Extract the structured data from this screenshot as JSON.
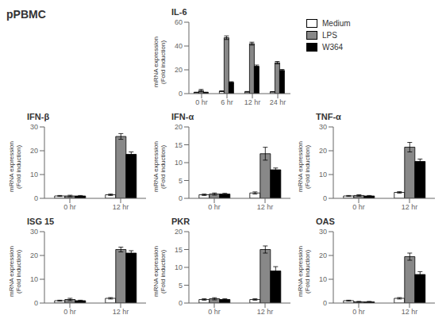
{
  "title": "pPBMC",
  "chart_data": [
    {
      "type": "bar",
      "title": "IL-6",
      "ylabel": "mRNA expression\n(Fold induction)",
      "categories": [
        "0 hr",
        "6 hr",
        "12 hr",
        "24 hr"
      ],
      "series": [
        {
          "name": "Medium",
          "color": "white",
          "values": [
            1.0,
            2.0,
            1.5,
            1.5
          ],
          "errors": [
            0.2,
            0.3,
            0.3,
            0.2
          ]
        },
        {
          "name": "LPS",
          "color": "#888888",
          "values": [
            2.5,
            47.0,
            42.0,
            26.0
          ],
          "errors": [
            1.0,
            1.5,
            1.2,
            1.0
          ]
        },
        {
          "name": "W364",
          "color": "black",
          "values": [
            1.0,
            9.5,
            23.0,
            19.5
          ],
          "errors": [
            0.2,
            0.5,
            1.0,
            0.8
          ]
        }
      ],
      "ylim": [
        0,
        60
      ],
      "yticks": [
        0,
        20,
        40,
        60
      ],
      "grid": false,
      "legend": "right"
    },
    {
      "type": "bar",
      "title": "IFN-β",
      "ylabel": "mRNA expression\n(Fold induction)",
      "categories": [
        "0 hr",
        "12 hr"
      ],
      "series": [
        {
          "name": "Medium",
          "color": "white",
          "values": [
            1.0,
            1.5
          ],
          "errors": [
            0.2,
            0.3
          ]
        },
        {
          "name": "LPS",
          "color": "#888888",
          "values": [
            1.0,
            26.0
          ],
          "errors": [
            0.3,
            1.2
          ]
        },
        {
          "name": "W364",
          "color": "black",
          "values": [
            1.0,
            18.5
          ],
          "errors": [
            0.2,
            1.0
          ]
        }
      ],
      "ylim": [
        0,
        30
      ],
      "yticks": [
        0,
        10,
        20,
        30
      ],
      "grid": false
    },
    {
      "type": "bar",
      "title": "IFN-α",
      "ylabel": "mRNA expression\n(Fold induction)",
      "categories": [
        "0 hr",
        "12 hr"
      ],
      "series": [
        {
          "name": "Medium",
          "color": "white",
          "values": [
            1.0,
            1.5
          ],
          "errors": [
            0.2,
            0.3
          ]
        },
        {
          "name": "LPS",
          "color": "#888888",
          "values": [
            1.2,
            12.5
          ],
          "errors": [
            0.3,
            1.8
          ]
        },
        {
          "name": "W364",
          "color": "black",
          "values": [
            1.2,
            8.0
          ],
          "errors": [
            0.2,
            0.5
          ]
        }
      ],
      "ylim": [
        0,
        20
      ],
      "yticks": [
        0,
        5,
        10,
        15,
        20
      ],
      "grid": false
    },
    {
      "type": "bar",
      "title": "TNF-α",
      "ylabel": "mRNA expression\n(Fold induction)",
      "categories": [
        "0 hr",
        "12 hr"
      ],
      "series": [
        {
          "name": "Medium",
          "color": "white",
          "values": [
            1.0,
            2.5
          ],
          "errors": [
            0.2,
            0.3
          ]
        },
        {
          "name": "LPS",
          "color": "#888888",
          "values": [
            1.2,
            21.5
          ],
          "errors": [
            0.3,
            2.0
          ]
        },
        {
          "name": "W364",
          "color": "black",
          "values": [
            1.0,
            15.5
          ],
          "errors": [
            0.2,
            1.0
          ]
        }
      ],
      "ylim": [
        0,
        30
      ],
      "yticks": [
        0,
        10,
        20,
        30
      ],
      "grid": false
    },
    {
      "type": "bar",
      "title": "ISG 15",
      "ylabel": "mRNA expression\n(Fold induction)",
      "categories": [
        "0 hr",
        "12 hr"
      ],
      "series": [
        {
          "name": "Medium",
          "color": "white",
          "values": [
            1.0,
            2.0
          ],
          "errors": [
            0.2,
            0.3
          ]
        },
        {
          "name": "LPS",
          "color": "#888888",
          "values": [
            1.5,
            22.5
          ],
          "errors": [
            0.5,
            1.0
          ]
        },
        {
          "name": "W364",
          "color": "black",
          "values": [
            1.0,
            21.0
          ],
          "errors": [
            0.2,
            1.0
          ]
        }
      ],
      "ylim": [
        0,
        30
      ],
      "yticks": [
        0,
        10,
        20,
        30
      ],
      "grid": false
    },
    {
      "type": "bar",
      "title": "PKR",
      "ylabel": "mRNA expression\n(Fold induction)",
      "categories": [
        "0 hr",
        "12 hr"
      ],
      "series": [
        {
          "name": "Medium",
          "color": "white",
          "values": [
            1.0,
            1.0
          ],
          "errors": [
            0.2,
            0.2
          ]
        },
        {
          "name": "LPS",
          "color": "#888888",
          "values": [
            1.2,
            15.0
          ],
          "errors": [
            0.3,
            1.0
          ]
        },
        {
          "name": "W364",
          "color": "black",
          "values": [
            1.0,
            9.0
          ],
          "errors": [
            0.2,
            1.2
          ]
        }
      ],
      "ylim": [
        0,
        20
      ],
      "yticks": [
        0,
        5,
        10,
        15,
        20
      ],
      "grid": false
    },
    {
      "type": "bar",
      "title": "OAS",
      "ylabel": "mRNA expression\n(Fold induction)",
      "categories": [
        "0 hr",
        "12 hr"
      ],
      "series": [
        {
          "name": "Medium",
          "color": "white",
          "values": [
            1.0,
            2.0
          ],
          "errors": [
            0.2,
            0.3
          ]
        },
        {
          "name": "LPS",
          "color": "#888888",
          "values": [
            0.5,
            19.5
          ],
          "errors": [
            0.2,
            1.5
          ]
        },
        {
          "name": "W364",
          "color": "black",
          "values": [
            0.5,
            12.0
          ],
          "errors": [
            0.2,
            1.2
          ]
        }
      ],
      "ylim": [
        0,
        30
      ],
      "yticks": [
        0,
        10,
        20,
        30
      ],
      "grid": false
    }
  ]
}
